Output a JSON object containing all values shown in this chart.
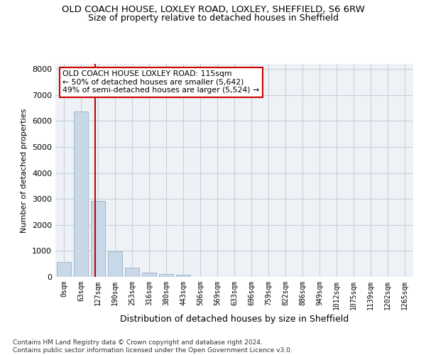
{
  "title1": "OLD COACH HOUSE, LOXLEY ROAD, LOXLEY, SHEFFIELD, S6 6RW",
  "title2": "Size of property relative to detached houses in Sheffield",
  "xlabel": "Distribution of detached houses by size in Sheffield",
  "ylabel": "Number of detached properties",
  "bar_labels": [
    "0sqm",
    "63sqm",
    "127sqm",
    "190sqm",
    "253sqm",
    "316sqm",
    "380sqm",
    "443sqm",
    "506sqm",
    "569sqm",
    "633sqm",
    "696sqm",
    "759sqm",
    "822sqm",
    "886sqm",
    "949sqm",
    "1012sqm",
    "1075sqm",
    "1139sqm",
    "1202sqm",
    "1265sqm"
  ],
  "bar_values": [
    570,
    6380,
    2920,
    980,
    360,
    170,
    105,
    90,
    0,
    0,
    0,
    0,
    0,
    0,
    0,
    0,
    0,
    0,
    0,
    0,
    0
  ],
  "bar_color": "#c8d8e8",
  "bar_edgecolor": "#a0b8cc",
  "vline_x": 1.85,
  "vline_color": "#cc0000",
  "annotation_text": "OLD COACH HOUSE LOXLEY ROAD: 115sqm\n← 50% of detached houses are smaller (5,642)\n49% of semi-detached houses are larger (5,524) →",
  "annotation_box_color": "#ffffff",
  "annotation_box_edgecolor": "#cc0000",
  "ylim": [
    0,
    8200
  ],
  "yticks": [
    0,
    1000,
    2000,
    3000,
    4000,
    5000,
    6000,
    7000,
    8000
  ],
  "footer": "Contains HM Land Registry data © Crown copyright and database right 2024.\nContains public sector information licensed under the Open Government Licence v3.0.",
  "bg_color": "#eef2f6",
  "grid_color": "#c8d0d8",
  "title1_fontsize": 9.5,
  "title2_fontsize": 9
}
